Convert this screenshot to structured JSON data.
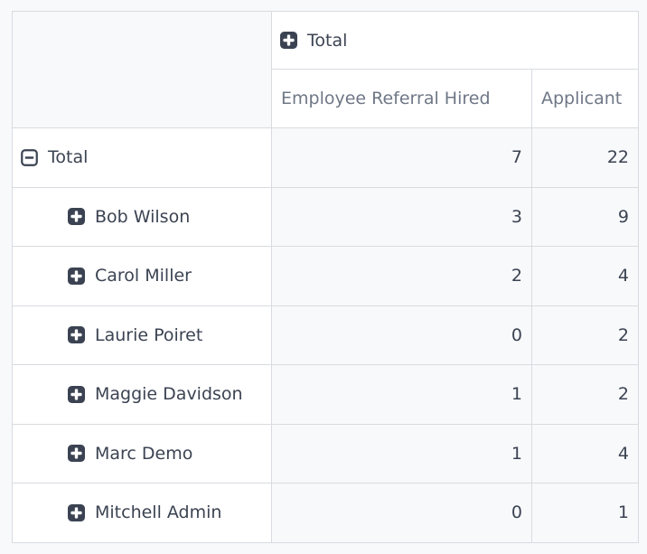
{
  "colors": {
    "page_bg": "#f8f9fb",
    "cell_bg": "#ffffff",
    "value_cell_bg": "#f8f9fb",
    "border": "#d8dbe0",
    "dark_text": "#3b4352",
    "number_text": "#333b4b",
    "muted_header_text": "#6f7786",
    "icon_fill": "#3b4352"
  },
  "pivot": {
    "column_group": {
      "label": "Total",
      "state": "collapsed",
      "icon": "plus-square-icon"
    },
    "measure_headers": [
      "Employee Referral Hired",
      "Applicant"
    ],
    "icons": {
      "expanded": "minus-square-icon",
      "collapsed": "plus-square-icon"
    },
    "rows": [
      {
        "label": "Total",
        "depth": 0,
        "state": "expanded",
        "values": [
          "7",
          "22"
        ]
      },
      {
        "label": "Bob Wilson",
        "depth": 1,
        "state": "collapsed",
        "values": [
          "3",
          "9"
        ]
      },
      {
        "label": "Carol Miller",
        "depth": 1,
        "state": "collapsed",
        "values": [
          "2",
          "4"
        ]
      },
      {
        "label": "Laurie Poiret",
        "depth": 1,
        "state": "collapsed",
        "values": [
          "0",
          "2"
        ]
      },
      {
        "label": "Maggie Davidson",
        "depth": 1,
        "state": "collapsed",
        "values": [
          "1",
          "2"
        ]
      },
      {
        "label": "Marc Demo",
        "depth": 1,
        "state": "collapsed",
        "values": [
          "1",
          "4"
        ]
      },
      {
        "label": "Mitchell Admin",
        "depth": 1,
        "state": "collapsed",
        "values": [
          "0",
          "1"
        ]
      }
    ]
  }
}
